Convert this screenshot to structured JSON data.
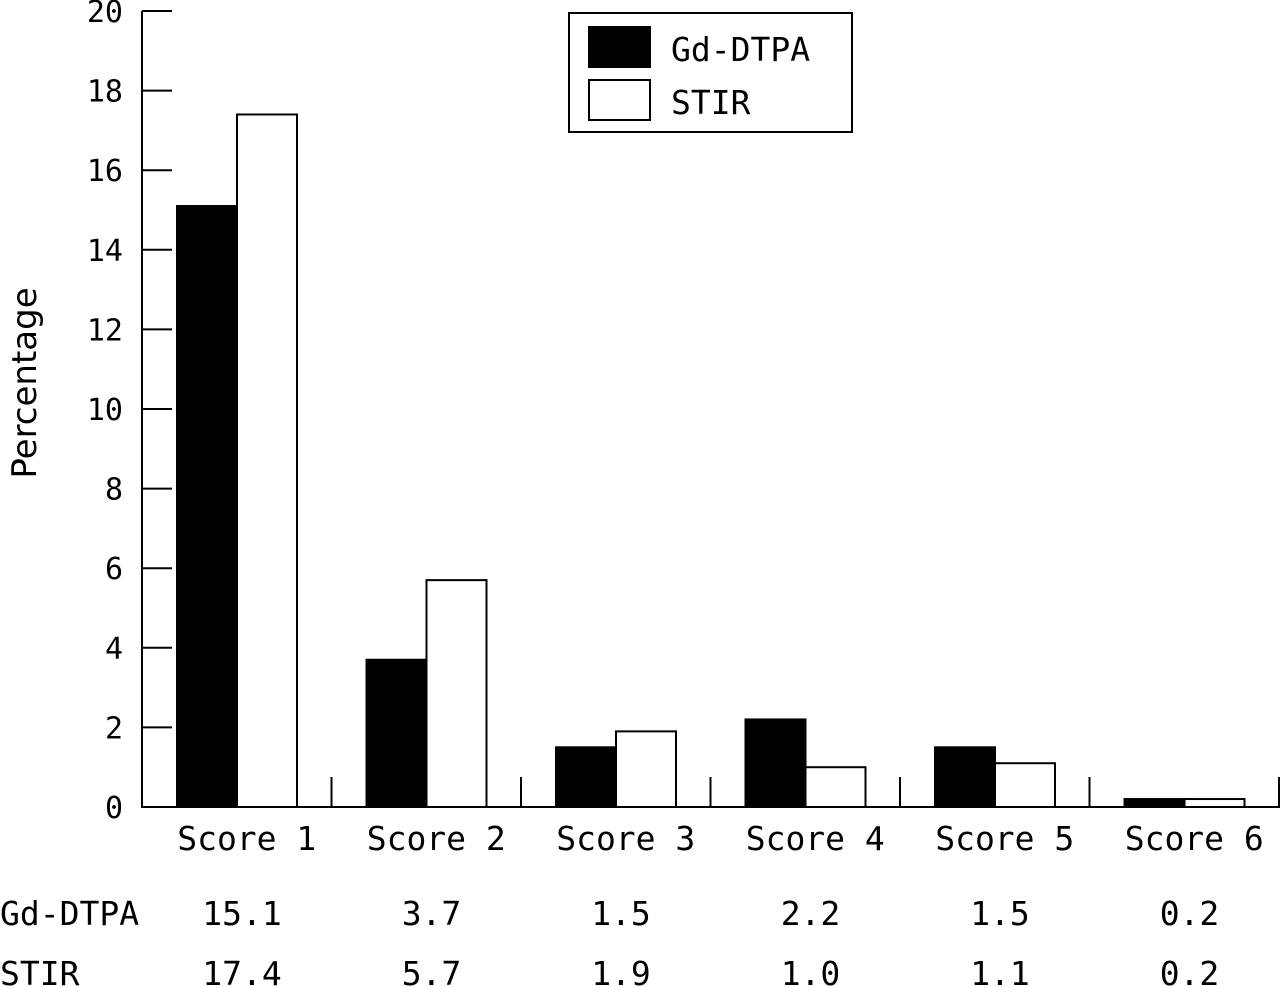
{
  "chart_data": {
    "type": "bar",
    "ylabel": "Percentage",
    "xlabel": "",
    "ylim": [
      0,
      20
    ],
    "yticks": [
      "0",
      "2",
      "4",
      "6",
      "8",
      "10",
      "12",
      "14",
      "16",
      "18",
      "20"
    ],
    "categories": [
      "Score 1",
      "Score 2",
      "Score 3",
      "Score 4",
      "Score 5",
      "Score 6"
    ],
    "series": [
      {
        "name": "Gd-DTPA",
        "values": [
          15.1,
          3.7,
          1.5,
          2.2,
          1.5,
          0.2
        ],
        "color": "#000000"
      },
      {
        "name": "STIR",
        "values": [
          17.4,
          5.7,
          1.9,
          1.0,
          1.1,
          0.2
        ],
        "color": "#ffffff"
      }
    ],
    "legend": {
      "placement": "top-right"
    },
    "grid": false,
    "table": {
      "rows": [
        {
          "label": "Gd-DTPA",
          "cells": [
            "15.1",
            "3.7",
            "1.5",
            "2.2",
            "1.5",
            "0.2"
          ]
        },
        {
          "label": "STIR",
          "cells": [
            "17.4",
            "5.7",
            "1.9",
            "1.0",
            "1.1",
            "0.2"
          ]
        }
      ]
    }
  }
}
